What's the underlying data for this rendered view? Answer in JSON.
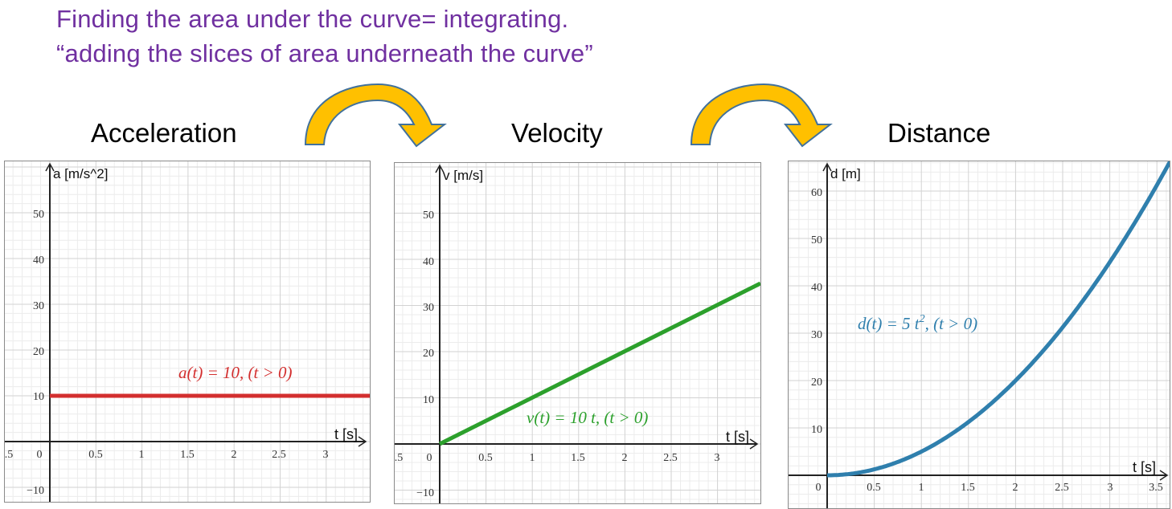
{
  "heading": {
    "line1": "Finding the area under the curve= integrating.",
    "line2": "“adding the slices of area underneath the curve”",
    "color": "#7030a0"
  },
  "titles": {
    "acceleration": "Acceleration",
    "velocity": "Velocity",
    "distance": "Distance"
  },
  "arrows": [
    {
      "name": "integrate-arrow-1",
      "color": "#ffc000",
      "outline": "#41719c"
    },
    {
      "name": "integrate-arrow-2",
      "color": "#ffc000",
      "outline": "#41719c"
    }
  ],
  "chart_data": [
    {
      "type": "line",
      "title": "Acceleration",
      "xlabel": "t [s]",
      "ylabel": "a [m/s^2]",
      "equation": "a(t) = 10,    (t > 0)",
      "color": "#d32f2f",
      "x_ticks": [
        "0",
        "0.5",
        "1",
        "1.5",
        "2",
        "2.5",
        "3"
      ],
      "y_ticks": [
        "50",
        "40",
        "30",
        "20",
        "10",
        "−10"
      ],
      "x_left_partial_tick": ".5",
      "xlim": [
        -0.5,
        3.45
      ],
      "ylim": [
        -13,
        61
      ],
      "grid": true,
      "x": [
        0,
        3.45
      ],
      "values": [
        10,
        10
      ]
    },
    {
      "type": "line",
      "title": "Velocity",
      "xlabel": "t [s]",
      "ylabel": "v [m/s]",
      "equation": "v(t) = 10 t,    (t > 0)",
      "color": "#2ca02c",
      "x_ticks": [
        "0",
        "0.5",
        "1",
        "1.5",
        "2",
        "2.5",
        "3"
      ],
      "y_ticks": [
        "50",
        "40",
        "30",
        "20",
        "10",
        "−10"
      ],
      "x_left_partial_tick": ".5",
      "xlim": [
        -0.5,
        3.45
      ],
      "ylim": [
        -13,
        61
      ],
      "grid": true,
      "x": [
        0,
        0.5,
        1,
        1.5,
        2,
        2.5,
        3,
        3.45
      ],
      "values": [
        0,
        5,
        10,
        15,
        20,
        25,
        30,
        34.5
      ]
    },
    {
      "type": "line",
      "title": "Distance",
      "xlabel": "t [s]",
      "ylabel": "d [m]",
      "equation_main": "d(t) = 5 t",
      "equation_sup": "2",
      "equation_tail": ",    (t > 0)",
      "color": "#2f7fad",
      "x_ticks": [
        "0",
        "0.5",
        "1",
        "1.5",
        "2",
        "2.5",
        "3",
        "3.5"
      ],
      "y_ticks": [
        "60",
        "50",
        "40",
        "30",
        "20",
        "10"
      ],
      "xlim": [
        -0.4,
        3.65
      ],
      "ylim": [
        -7,
        66
      ],
      "grid": true,
      "x": [
        0,
        0.5,
        1,
        1.5,
        2,
        2.5,
        3,
        3.5,
        3.62
      ],
      "values": [
        0,
        1.25,
        5,
        11.25,
        20,
        31.25,
        45,
        61.25,
        65.5
      ]
    }
  ]
}
